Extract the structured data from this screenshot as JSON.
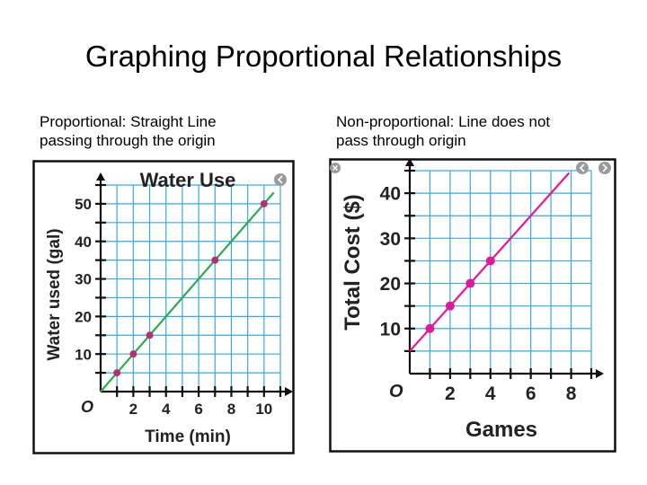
{
  "slide": {
    "title": "Graphing Proportional Relationships"
  },
  "captions": {
    "left": [
      "Proportional: Straight Line",
      "passing through the origin"
    ],
    "right": [
      "Non-proportional: Line does not",
      "pass through origin"
    ]
  },
  "colors": {
    "grid": "#3aa8de",
    "left_line": "#2fa84f",
    "left_point": "#b3306f",
    "right_line": "#e0189a",
    "right_point": "#e0189a"
  },
  "chart_data": [
    {
      "type": "line",
      "title": "Water Use",
      "xlabel": "Time (min)",
      "ylabel": "Water used (gal)",
      "origin_label": "O",
      "xlim": [
        0,
        11
      ],
      "ylim": [
        0,
        55
      ],
      "x_ticks": [
        2,
        4,
        6,
        8,
        10
      ],
      "y_ticks": [
        10,
        20,
        30,
        40,
        50
      ],
      "grid": true,
      "line": {
        "x": [
          0,
          10.6
        ],
        "y": [
          0,
          53
        ]
      },
      "series": [
        {
          "x": [
            1,
            2,
            3,
            7,
            10
          ],
          "y": [
            5,
            10,
            15,
            35,
            50
          ]
        }
      ]
    },
    {
      "type": "line",
      "title": "",
      "xlabel": "Games",
      "ylabel": "Total Cost ($)",
      "origin_label": "O",
      "xlim": [
        0,
        9
      ],
      "ylim": [
        0,
        45
      ],
      "x_ticks": [
        2,
        4,
        6,
        8
      ],
      "y_ticks": [
        10,
        20,
        30,
        40
      ],
      "grid": true,
      "line": {
        "x": [
          0,
          7.9
        ],
        "y": [
          5,
          44.5
        ]
      },
      "series": [
        {
          "x": [
            1,
            2,
            3,
            4
          ],
          "y": [
            10,
            15,
            20,
            25
          ]
        }
      ]
    }
  ]
}
